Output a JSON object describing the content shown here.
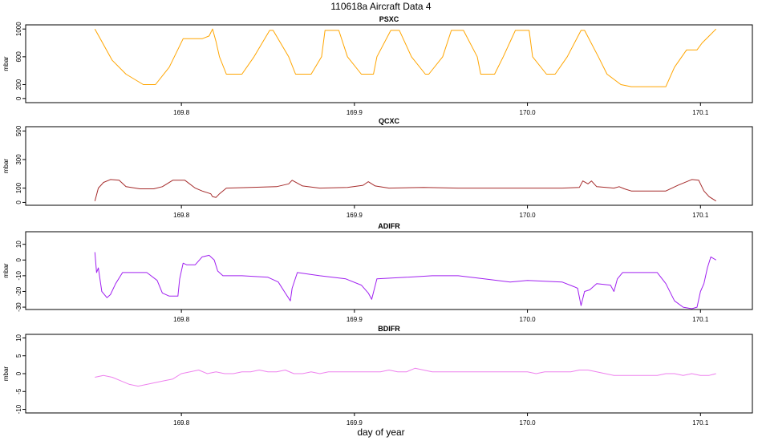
{
  "title": "110618a   Aircraft Data 4",
  "xlabel": "day of year",
  "colors": {
    "PSXC": "#FFA500",
    "QCXC": "#A52A2A",
    "ADIFR": "#A020F0",
    "BDIFR": "#EE82EE"
  },
  "chart_data": [
    {
      "type": "line",
      "title": "PSXC",
      "ylabel": "mbar",
      "xlim": [
        169.71,
        170.13
      ],
      "ylim": [
        -60,
        1060
      ],
      "xticks": [
        "169.8",
        "169.9",
        "170.0",
        "170.1"
      ],
      "xtick_values": [
        169.8,
        169.9,
        170.0,
        170.1
      ],
      "yticks": [
        "0",
        "200",
        "600",
        "1000"
      ],
      "ytick_values": [
        0,
        200,
        600,
        1000
      ],
      "series": [
        {
          "x": [
            169.75,
            169.76,
            169.768,
            169.778,
            169.785,
            169.793,
            169.801,
            169.812,
            169.816,
            169.818,
            169.82,
            169.822,
            169.826,
            169.835,
            169.842,
            169.851,
            169.853,
            169.862,
            169.866,
            169.875,
            169.881,
            169.883,
            169.891,
            169.896,
            169.904,
            169.911,
            169.913,
            169.921,
            169.926,
            169.933,
            169.941,
            169.943,
            169.951,
            169.956,
            169.963,
            169.971,
            169.973,
            169.981,
            169.986,
            169.993,
            170.001,
            170.003,
            170.011,
            170.016,
            170.023,
            170.031,
            170.033,
            170.041,
            170.046,
            170.054,
            170.06,
            170.07,
            170.08,
            170.085,
            170.092,
            170.098,
            170.101,
            170.105,
            170.109
          ],
          "y": [
            1000,
            550,
            350,
            200,
            200,
            450,
            860,
            860,
            900,
            1000,
            820,
            600,
            350,
            350,
            600,
            980,
            980,
            600,
            350,
            350,
            600,
            980,
            980,
            600,
            350,
            350,
            600,
            980,
            980,
            600,
            350,
            350,
            600,
            980,
            980,
            600,
            350,
            350,
            600,
            980,
            980,
            600,
            350,
            350,
            600,
            980,
            980,
            600,
            350,
            200,
            170,
            170,
            170,
            450,
            700,
            700,
            800,
            900,
            1000
          ]
        }
      ]
    },
    {
      "type": "line",
      "title": "QCXC",
      "ylabel": "mbar",
      "xlim": [
        169.71,
        170.13
      ],
      "ylim": [
        -20,
        530
      ],
      "xticks": [
        "169.8",
        "169.9",
        "170.0",
        "170.1"
      ],
      "xtick_values": [
        169.8,
        169.9,
        170.0,
        170.1
      ],
      "yticks": [
        "0",
        "100",
        "300",
        "500"
      ],
      "ytick_values": [
        0,
        100,
        300,
        500
      ],
      "series": [
        {
          "x": [
            169.75,
            169.752,
            169.755,
            169.759,
            169.764,
            169.768,
            169.776,
            169.784,
            169.789,
            169.795,
            169.802,
            169.808,
            169.812,
            169.817,
            169.818,
            169.82,
            169.822,
            169.826,
            169.84,
            169.855,
            169.862,
            169.864,
            169.87,
            169.88,
            169.896,
            169.905,
            169.908,
            169.912,
            169.92,
            169.94,
            169.96,
            169.98,
            170.0,
            170.02,
            170.03,
            170.032,
            170.035,
            170.037,
            170.04,
            170.05,
            170.053,
            170.056,
            170.06,
            170.07,
            170.08,
            170.087,
            170.095,
            170.099,
            170.102,
            170.105,
            170.109
          ],
          "y": [
            10,
            100,
            140,
            160,
            155,
            110,
            95,
            95,
            110,
            155,
            155,
            100,
            80,
            60,
            40,
            35,
            60,
            100,
            105,
            110,
            130,
            155,
            115,
            100,
            105,
            120,
            145,
            115,
            100,
            105,
            100,
            100,
            100,
            100,
            105,
            150,
            130,
            150,
            110,
            100,
            110,
            95,
            80,
            80,
            80,
            120,
            160,
            155,
            80,
            40,
            10
          ]
        }
      ]
    },
    {
      "type": "line",
      "title": "ADIFR",
      "ylabel": "mbar",
      "xlim": [
        169.71,
        170.13
      ],
      "ylim": [
        -31.5,
        18
      ],
      "xticks": [
        "169.8",
        "169.9",
        "170.0",
        "170.1"
      ],
      "xtick_values": [
        169.8,
        169.9,
        170.0,
        170.1
      ],
      "yticks": [
        "-30",
        "-20",
        "-10",
        "0",
        "10"
      ],
      "ytick_values": [
        -30,
        -20,
        -10,
        0,
        10
      ],
      "series": [
        {
          "x": [
            169.75,
            169.751,
            169.752,
            169.754,
            169.757,
            169.759,
            169.762,
            169.766,
            169.77,
            169.78,
            169.786,
            169.789,
            169.793,
            169.798,
            169.799,
            169.801,
            169.803,
            169.808,
            169.812,
            169.816,
            169.819,
            169.821,
            169.824,
            169.835,
            169.85,
            169.856,
            169.86,
            169.863,
            169.864,
            169.867,
            169.88,
            169.895,
            169.904,
            169.908,
            169.91,
            169.913,
            169.93,
            169.945,
            169.96,
            169.975,
            169.99,
            170.0,
            170.02,
            170.027,
            170.029,
            170.031,
            170.033,
            170.036,
            170.04,
            170.048,
            170.05,
            170.052,
            170.055,
            170.06,
            170.075,
            170.08,
            170.085,
            170.09,
            170.095,
            170.098,
            170.1,
            170.102,
            170.104,
            170.106,
            170.109
          ],
          "y": [
            5,
            -8,
            -5,
            -20,
            -24,
            -22,
            -15,
            -8,
            -8,
            -8,
            -13,
            -21,
            -23,
            -23,
            -12,
            -2,
            -3,
            -3,
            2,
            3,
            0,
            -7,
            -10,
            -10,
            -11,
            -14,
            -21,
            -26,
            -18,
            -8,
            -10,
            -12,
            -16,
            -21,
            -25,
            -12,
            -11,
            -10,
            -10,
            -12,
            -14,
            -13,
            -14,
            -17,
            -18,
            -29,
            -20,
            -19,
            -15,
            -16,
            -20,
            -12,
            -8,
            -8,
            -8,
            -15,
            -26,
            -30,
            -31,
            -30,
            -20,
            -15,
            -5,
            2,
            0
          ]
        }
      ]
    },
    {
      "type": "line",
      "title": "BDIFR",
      "ylabel": "mbar",
      "xlim": [
        169.71,
        170.13
      ],
      "ylim": [
        -11,
        11
      ],
      "xticks": [
        "169.8",
        "169.9",
        "170.0",
        "170.1"
      ],
      "xtick_values": [
        169.8,
        169.9,
        170.0,
        170.1
      ],
      "yticks": [
        "-10",
        "-5",
        "0",
        "5",
        "10"
      ],
      "ytick_values": [
        -10,
        -5,
        0,
        5,
        10
      ],
      "series": [
        {
          "x": [
            169.75,
            169.755,
            169.76,
            169.765,
            169.77,
            169.775,
            169.78,
            169.785,
            169.79,
            169.795,
            169.8,
            169.805,
            169.81,
            169.815,
            169.82,
            169.825,
            169.83,
            169.835,
            169.84,
            169.845,
            169.85,
            169.855,
            169.86,
            169.865,
            169.87,
            169.875,
            169.88,
            169.885,
            169.89,
            169.895,
            169.9,
            169.905,
            169.91,
            169.915,
            169.92,
            169.925,
            169.93,
            169.935,
            169.94,
            169.945,
            169.95,
            169.955,
            169.96,
            169.965,
            169.97,
            169.975,
            169.98,
            169.985,
            169.99,
            169.995,
            170.0,
            170.005,
            170.01,
            170.015,
            170.02,
            170.025,
            170.03,
            170.035,
            170.04,
            170.045,
            170.05,
            170.055,
            170.06,
            170.065,
            170.07,
            170.075,
            170.08,
            170.085,
            170.09,
            170.095,
            170.1,
            170.105,
            170.109
          ],
          "y": [
            -1,
            -0.5,
            -1,
            -2,
            -3,
            -3.5,
            -3,
            -2.5,
            -2,
            -1.5,
            0,
            0.5,
            1,
            0,
            0.5,
            0,
            0,
            0.5,
            0.5,
            1,
            0.5,
            0.5,
            1,
            0,
            0,
            0.5,
            0,
            0.5,
            0.5,
            0.5,
            0.5,
            0.5,
            0.5,
            0.5,
            1,
            0.5,
            0.5,
            1.5,
            1,
            0.5,
            0.5,
            0.5,
            0.5,
            0.5,
            0.5,
            0.5,
            0.5,
            0.5,
            0.5,
            0.5,
            0.5,
            0,
            0.5,
            0.5,
            0.5,
            0.5,
            1,
            1,
            0.5,
            0,
            -0.5,
            -0.5,
            -0.5,
            -0.5,
            -0.5,
            -0.5,
            0,
            0,
            -0.5,
            0,
            -0.5,
            -0.5,
            0
          ]
        }
      ]
    }
  ]
}
